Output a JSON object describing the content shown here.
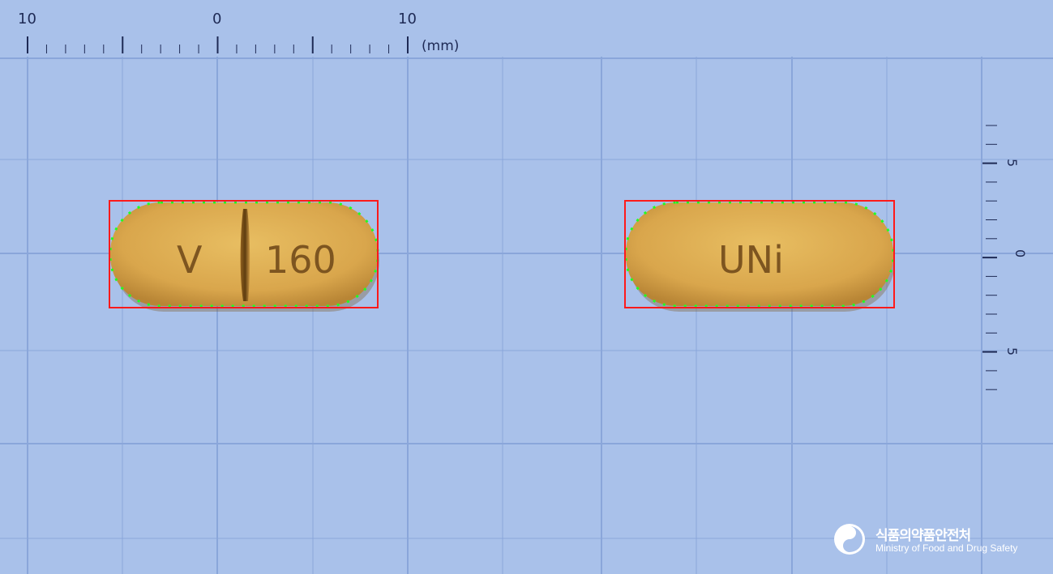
{
  "photo": {
    "background_color": "#a9c1ea",
    "grid_color": "#8aa6da",
    "scale_unit": "(mm)"
  },
  "top_ruler": {
    "labels": [
      "10",
      "0",
      "10"
    ],
    "unit": "(mm)"
  },
  "side_ruler": {
    "labels": [
      "5",
      "0",
      "5"
    ]
  },
  "tablets": [
    {
      "name": "front",
      "color": "#dba84e",
      "imprint_left": "V",
      "imprint_right": "160",
      "score_line": true,
      "outline_color": "#22ff22",
      "box_color": "#ff1a1a"
    },
    {
      "name": "back",
      "color": "#dba84e",
      "imprint": "UNi",
      "score_line": false,
      "outline_color": "#22ff22",
      "box_color": "#ff1a1a"
    }
  ],
  "logo": {
    "korean": "식품의약품안전처",
    "english": "Ministry of Food and Drug Safety",
    "icon": "mfds-emblem-icon"
  }
}
